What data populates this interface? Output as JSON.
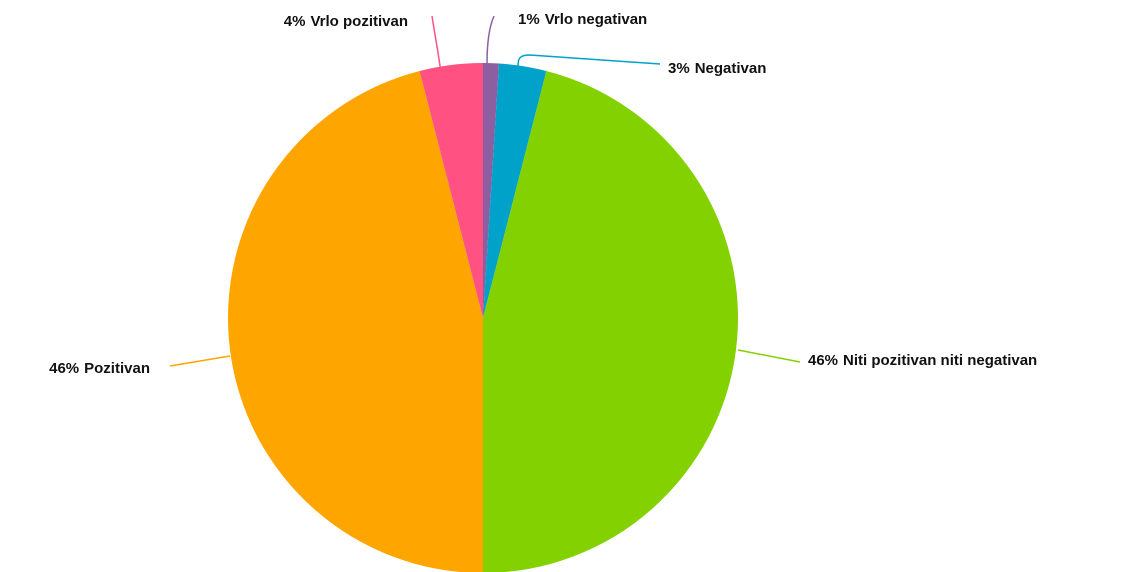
{
  "chart_data": {
    "type": "pie",
    "categories": [
      "Vrlo negativan",
      "Negativan",
      "Niti pozitivan niti negativan",
      "Pozitivan",
      "Vrlo pozitivan"
    ],
    "values": [
      1,
      3,
      46,
      46,
      4
    ],
    "value_labels": [
      "1%",
      "3%",
      "46%",
      "46%",
      "4%"
    ],
    "colors": [
      "#8e5ea2",
      "#00a2c9",
      "#84d100",
      "#ffa500",
      "#ff5282"
    ]
  }
}
